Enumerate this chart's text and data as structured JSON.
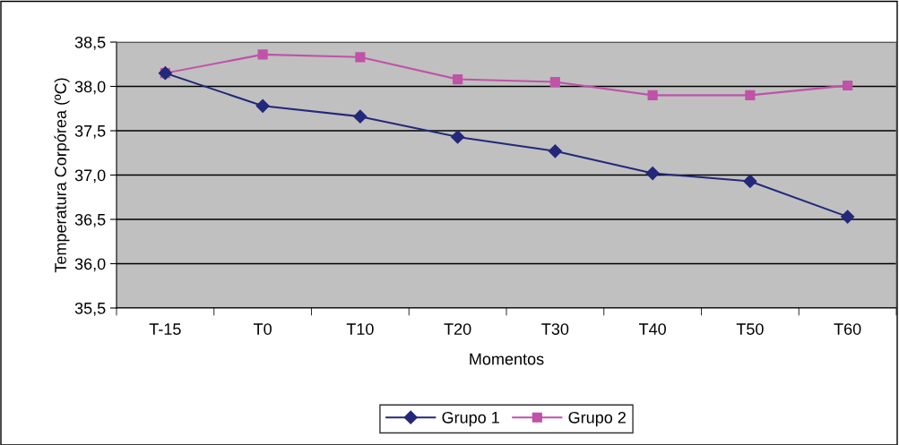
{
  "chart_data": {
    "type": "line",
    "xlabel": "Momentos",
    "ylabel": "Temperatura Corpórea (ºC)",
    "categories": [
      "T-15",
      "T0",
      "T10",
      "T20",
      "T30",
      "T40",
      "T50",
      "T60"
    ],
    "series": [
      {
        "name": "Grupo 1",
        "color": "#24287a",
        "marker": "diamond",
        "values": [
          38.15,
          37.78,
          37.66,
          37.43,
          37.27,
          37.02,
          36.93,
          36.53
        ]
      },
      {
        "name": "Grupo 2",
        "color": "#c052a8",
        "marker": "square",
        "values": [
          38.15,
          38.36,
          38.33,
          38.08,
          38.05,
          37.9,
          37.9,
          38.01
        ]
      }
    ],
    "ylim": [
      35.5,
      38.5
    ],
    "yticks": [
      {
        "value": 35.5,
        "label": "35,5"
      },
      {
        "value": 36.0,
        "label": "36,0"
      },
      {
        "value": 36.5,
        "label": "36,5"
      },
      {
        "value": 37.0,
        "label": "37,0"
      },
      {
        "value": 37.5,
        "label": "37,5"
      },
      {
        "value": 38.0,
        "label": "38,0"
      },
      {
        "value": 38.5,
        "label": "38,5"
      }
    ],
    "grid": "y",
    "legend": "bottom",
    "line_style": "solid"
  }
}
